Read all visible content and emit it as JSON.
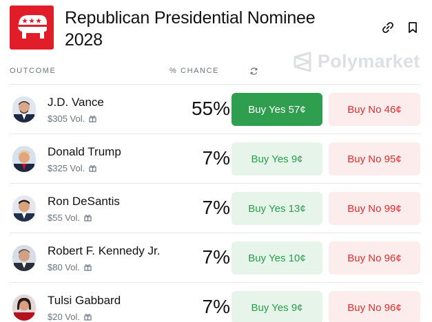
{
  "header": {
    "title": "Republican Presidential Nominee 2028",
    "watermark": "Polymarket"
  },
  "columns": {
    "outcome": "OUTCOME",
    "chance": "% CHANCE"
  },
  "colors": {
    "yes": "#27a04a",
    "yes_primary_bg": "#2f9e4f",
    "no": "#e02e2e",
    "logo_red": "#e11d2a"
  },
  "outcomes": [
    {
      "name": "J.D. Vance",
      "vol": "$305 Vol.",
      "chance": "55%",
      "yes": "Buy Yes 57¢",
      "no": "Buy No 46¢"
    },
    {
      "name": "Donald Trump",
      "vol": "$325 Vol.",
      "chance": "7%",
      "yes": "Buy Yes 9¢",
      "no": "Buy No 95¢"
    },
    {
      "name": "Ron DeSantis",
      "vol": "$55 Vol.",
      "chance": "7%",
      "yes": "Buy Yes 13¢",
      "no": "Buy No 99¢"
    },
    {
      "name": "Robert F. Kennedy Jr.",
      "vol": "$80 Vol.",
      "chance": "7%",
      "yes": "Buy Yes 10¢",
      "no": "Buy No 96¢"
    },
    {
      "name": "Tulsi Gabbard",
      "vol": "$20 Vol.",
      "chance": "7%",
      "yes": "Buy Yes 9¢",
      "no": "Buy No 96¢"
    }
  ]
}
